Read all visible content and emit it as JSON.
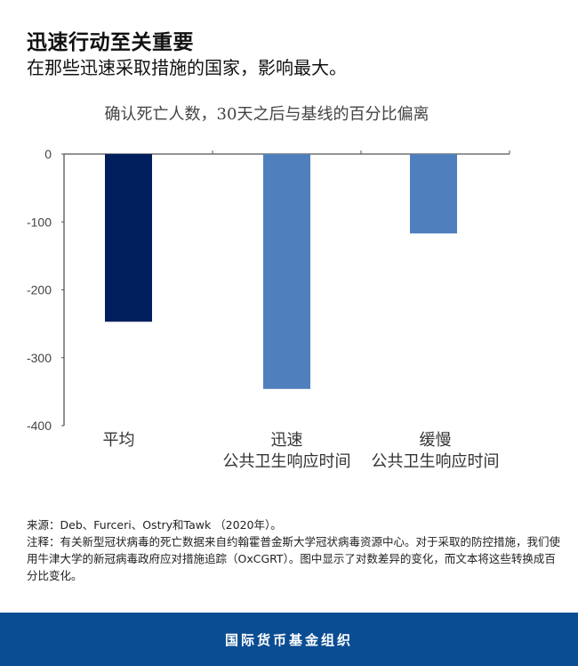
{
  "header": {
    "title": "迅速行动至关重要",
    "subtitle": "在那些迅速采取措施的国家，影响最大。"
  },
  "chart_data": {
    "type": "bar",
    "title": "确认死亡人数，30天之后与基线的百分比偏离",
    "categories": [
      [
        "平均"
      ],
      [
        "迅速",
        "公共卫生响应时间"
      ],
      [
        "缓慢",
        "公共卫生响应时间"
      ]
    ],
    "values": [
      -247,
      -346,
      -117
    ],
    "colors": [
      "#001f5c",
      "#4f80bd",
      "#4f80bd"
    ],
    "ylim": [
      -400,
      0
    ],
    "yticks": [
      0,
      -100,
      -200,
      -300,
      -400
    ],
    "grid": false,
    "xlabel": "",
    "ylabel": ""
  },
  "notes": {
    "source": "来源：Deb、Furceri、Ostry和Tawk （2020年）。",
    "note": "注释：有关新型冠状病毒的死亡数据来自约翰霍普金斯大学冠状病毒资源中心。对于采取的防控措施，我们使用牛津大学的新冠病毒政府应对措施追踪（OxCGRT）。图中显示了对数差异的变化，而文本将这些转换成百分比变化。"
  },
  "footer": {
    "org": "国际货币基金组织"
  }
}
